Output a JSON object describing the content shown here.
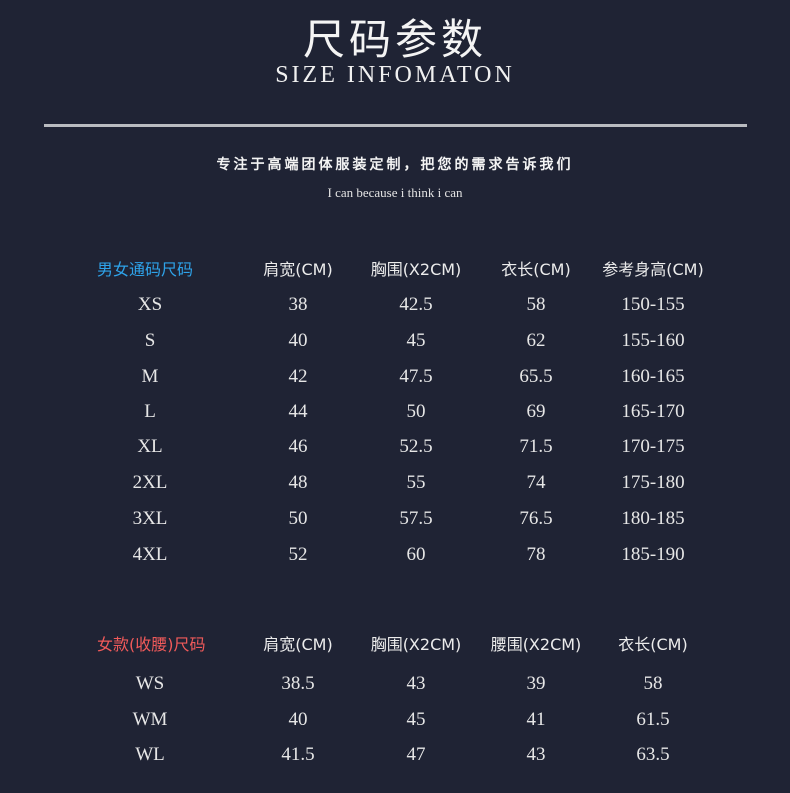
{
  "header": {
    "title": "尺码参数",
    "subtitle": "SIZE INFOMATON",
    "slogan": "专注于高端团体服装定制，把您的需求告诉我们",
    "motto": "I can because i think i can"
  },
  "colors": {
    "background": "#1f2334",
    "unisex_label": "#2ea3ea",
    "women_label": "#f05a5a"
  },
  "unisex_table": {
    "label": "男女通码尺码",
    "columns": [
      "肩宽(CM)",
      "胸围(X2CM)",
      "衣长(CM)",
      "参考身高(CM)"
    ],
    "rows": [
      [
        "XS",
        "38",
        "42.5",
        "58",
        "150-155"
      ],
      [
        "S",
        "40",
        "45",
        "62",
        "155-160"
      ],
      [
        "M",
        "42",
        "47.5",
        "65.5",
        "160-165"
      ],
      [
        "L",
        "44",
        "50",
        "69",
        "165-170"
      ],
      [
        "XL",
        "46",
        "52.5",
        "71.5",
        "170-175"
      ],
      [
        "2XL",
        "48",
        "55",
        "74",
        "175-180"
      ],
      [
        "3XL",
        "50",
        "57.5",
        "76.5",
        "180-185"
      ],
      [
        "4XL",
        "52",
        "60",
        "78",
        "185-190"
      ]
    ]
  },
  "women_table": {
    "label": "女款(收腰)尺码",
    "columns": [
      "肩宽(CM)",
      "胸围(X2CM)",
      "腰围(X2CM)",
      "衣长(CM)"
    ],
    "rows": [
      [
        "WS",
        "38.5",
        "43",
        "39",
        "58"
      ],
      [
        "WM",
        "40",
        "45",
        "41",
        "61.5"
      ],
      [
        "WL",
        "41.5",
        "47",
        "43",
        "63.5"
      ]
    ]
  }
}
